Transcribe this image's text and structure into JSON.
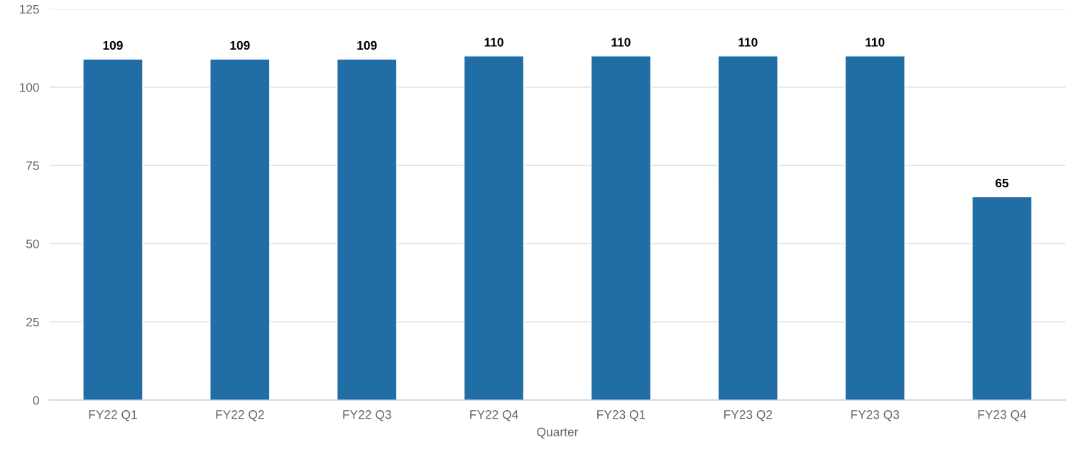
{
  "chart_data": {
    "type": "bar",
    "xlabel": "Quarter",
    "categories": [
      "FY22 Q1",
      "FY22 Q2",
      "FY22 Q3",
      "FY22 Q4",
      "FY23 Q1",
      "FY23 Q2",
      "FY23 Q3",
      "FY23 Q4"
    ],
    "values": [
      109,
      109,
      109,
      110,
      110,
      110,
      110,
      65
    ],
    "color": "#216ea6",
    "ylim": [
      0,
      125
    ],
    "yticks": [
      0,
      25,
      50,
      75,
      100,
      125
    ],
    "grid": "y",
    "data_labels": true
  }
}
